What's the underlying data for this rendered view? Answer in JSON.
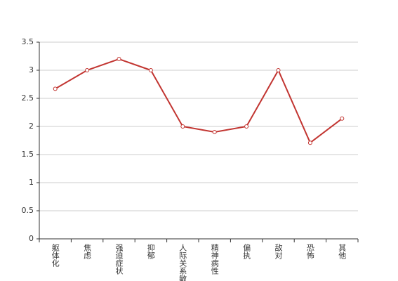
{
  "chart_data": {
    "type": "line",
    "categories": [
      "躯体化",
      "焦虑",
      "强迫症状",
      "抑郁",
      "人际关系敏感",
      "精神病性",
      "偏执",
      "敌对",
      "恐怖",
      "其他"
    ],
    "values": [
      2.67,
      3.0,
      3.2,
      3.0,
      2.0,
      1.9,
      2.0,
      3.0,
      1.71,
      2.14
    ],
    "color": "#c23531",
    "ylim": [
      0,
      3.5
    ],
    "yticks": [
      0,
      0.5,
      1,
      1.5,
      2,
      2.5,
      3,
      3.5
    ],
    "grid": true
  }
}
